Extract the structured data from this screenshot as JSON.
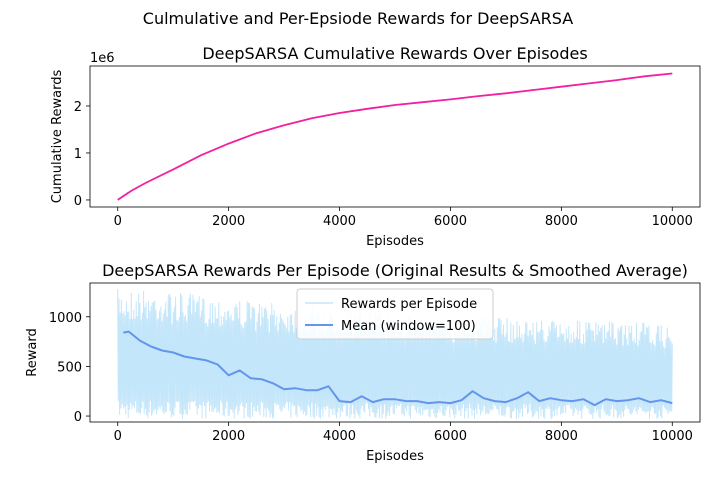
{
  "figure": {
    "suptitle": "Culmulative and Per-Epsiode Rewards for DeepSARSA"
  },
  "chart_data": [
    {
      "type": "line",
      "title": "DeepSARSA Cumulative Rewards Over Episodes",
      "xlabel": "Episodes",
      "ylabel": "Cumulative Rewards",
      "offset_label": "1e6",
      "xlim": [
        -500,
        10500
      ],
      "ylim": [
        -0.15,
        2.85
      ],
      "xticks": [
        0,
        2000,
        4000,
        6000,
        8000,
        10000
      ],
      "xtick_labels": [
        "0",
        "2000",
        "4000",
        "6000",
        "8000",
        "10000"
      ],
      "yticks": [
        0,
        1,
        2
      ],
      "ytick_labels": [
        "0",
        "1",
        "2"
      ],
      "grid": false,
      "series": [
        {
          "color": "#f21f9e",
          "x": [
            0,
            250,
            500,
            1000,
            1500,
            2000,
            2500,
            3000,
            3500,
            4000,
            4500,
            5000,
            5500,
            6000,
            6500,
            7000,
            7500,
            8000,
            8500,
            9000,
            9500,
            10000
          ],
          "y": [
            0,
            0.2,
            0.36,
            0.65,
            0.95,
            1.2,
            1.42,
            1.59,
            1.74,
            1.85,
            1.94,
            2.02,
            2.08,
            2.14,
            2.21,
            2.27,
            2.34,
            2.41,
            2.48,
            2.55,
            2.63,
            2.69
          ]
        }
      ]
    },
    {
      "type": "line",
      "title": "DeepSARSA Rewards Per Episode (Original Results & Smoothed Average)",
      "xlabel": "Episodes",
      "ylabel": "Reward",
      "xlim": [
        -500,
        10500
      ],
      "ylim": [
        -60,
        1340
      ],
      "xticks": [
        0,
        2000,
        4000,
        6000,
        8000,
        10000
      ],
      "xtick_labels": [
        "0",
        "2000",
        "4000",
        "6000",
        "8000",
        "10000"
      ],
      "yticks": [
        0,
        500,
        1000
      ],
      "ytick_labels": [
        "0",
        "500",
        "1000"
      ],
      "grid": false,
      "legend": {
        "placement": "upper center"
      },
      "series": [
        {
          "name": "Rewards per Episode",
          "color": "#c4e6fa",
          "width": 1.5,
          "x": [
            0,
            500,
            1000,
            1500,
            2000,
            2500,
            3000,
            3500,
            4000,
            4500,
            5000,
            5500,
            6000,
            6500,
            7000,
            7500,
            8000,
            8500,
            9000,
            9500,
            10000
          ],
          "low": [
            -30,
            -30,
            -30,
            -30,
            -30,
            -30,
            -30,
            -30,
            -30,
            -30,
            -30,
            -30,
            -30,
            -30,
            -30,
            -30,
            -30,
            -30,
            -30,
            -30,
            -30
          ],
          "high": [
            1280,
            1280,
            1250,
            1220,
            1200,
            1150,
            1130,
            1100,
            1080,
            1060,
            1040,
            1020,
            1000,
            1010,
            990,
            980,
            970,
            960,
            950,
            940,
            900
          ]
        },
        {
          "name": "Mean (window=100)",
          "color": "#6495ed",
          "width": 2,
          "x": [
            100,
            200,
            400,
            600,
            800,
            1000,
            1200,
            1400,
            1600,
            1800,
            2000,
            2200,
            2400,
            2600,
            2800,
            3000,
            3200,
            3400,
            3600,
            3800,
            4000,
            4200,
            4400,
            4600,
            4800,
            5000,
            5200,
            5400,
            5600,
            5800,
            6000,
            6200,
            6400,
            6600,
            6800,
            7000,
            7200,
            7400,
            7600,
            7800,
            8000,
            8200,
            8400,
            8600,
            8800,
            9000,
            9200,
            9400,
            9600,
            9800,
            10000
          ],
          "y": [
            840,
            850,
            760,
            700,
            660,
            640,
            600,
            580,
            560,
            520,
            410,
            460,
            380,
            370,
            330,
            270,
            280,
            260,
            260,
            300,
            150,
            140,
            200,
            140,
            170,
            170,
            150,
            150,
            130,
            140,
            130,
            160,
            250,
            180,
            150,
            140,
            180,
            240,
            150,
            180,
            160,
            150,
            170,
            110,
            170,
            150,
            160,
            180,
            140,
            160,
            130
          ]
        }
      ]
    }
  ]
}
